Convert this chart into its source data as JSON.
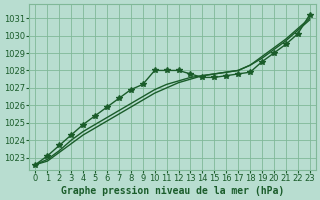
{
  "xlabel": "Graphe pression niveau de la mer (hPa)",
  "ylim": [
    1022.3,
    1031.8
  ],
  "xlim": [
    -0.5,
    23.5
  ],
  "yticks": [
    1023,
    1024,
    1025,
    1026,
    1027,
    1028,
    1029,
    1030,
    1031
  ],
  "xticks": [
    0,
    1,
    2,
    3,
    4,
    5,
    6,
    7,
    8,
    9,
    10,
    11,
    12,
    13,
    14,
    15,
    16,
    17,
    18,
    19,
    20,
    21,
    22,
    23
  ],
  "bg_color": "#b8ddd0",
  "grid_color": "#80b898",
  "line_color": "#1a5c2a",
  "series_smooth1": [
    1022.6,
    1022.8,
    1023.3,
    1023.8,
    1024.3,
    1024.7,
    1025.1,
    1025.5,
    1025.9,
    1026.3,
    1026.7,
    1027.0,
    1027.3,
    1027.5,
    1027.7,
    1027.8,
    1027.9,
    1028.0,
    1028.3,
    1028.8,
    1029.3,
    1029.8,
    1030.4,
    1031.0
  ],
  "series_smooth2": [
    1022.6,
    1022.9,
    1023.4,
    1024.0,
    1024.5,
    1024.9,
    1025.3,
    1025.7,
    1026.1,
    1026.5,
    1026.9,
    1027.2,
    1027.4,
    1027.6,
    1027.7,
    1027.8,
    1027.9,
    1028.0,
    1028.3,
    1028.7,
    1029.2,
    1029.7,
    1030.3,
    1030.9
  ],
  "series_marked": [
    1022.6,
    1023.1,
    1023.7,
    1024.3,
    1024.9,
    1025.4,
    1025.9,
    1026.4,
    1026.9,
    1027.2,
    1028.0,
    1028.0,
    1028.0,
    1027.8,
    1027.6,
    1027.6,
    1027.7,
    1027.8,
    1027.9,
    1028.5,
    1029.0,
    1029.5,
    1030.1,
    1031.2
  ],
  "marker": "*",
  "markersize": 4.0,
  "linewidth": 1.0,
  "font_color": "#1a5c2a",
  "tick_fontsize": 6.0,
  "label_fontsize": 7.0
}
